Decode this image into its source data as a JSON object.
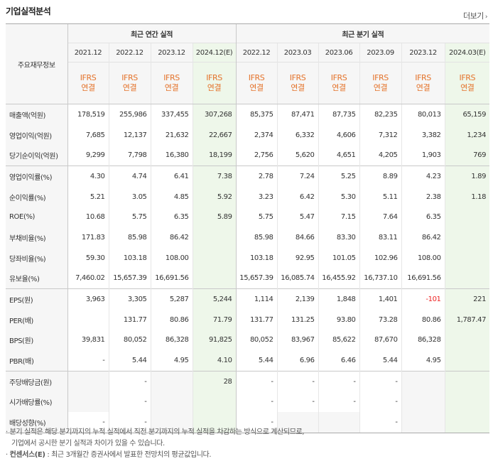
{
  "title": "기업실적분석",
  "more": "더보기",
  "header": {
    "row_label": "주요재무정보",
    "annual_label": "최근 연간 실적",
    "quarter_label": "최근 분기 실적",
    "annual_periods": [
      "2021.12",
      "2022.12",
      "2023.12",
      "2024.12(E)"
    ],
    "quarter_periods": [
      "2022.12",
      "2023.03",
      "2023.06",
      "2023.09",
      "2023.12",
      "2024.03(E)"
    ],
    "basis_line1": "IFRS",
    "basis_line2": "연결"
  },
  "rows": [
    {
      "label": "매출액(억원)",
      "annual": [
        "178,519",
        "255,986",
        "337,455",
        "307,268"
      ],
      "quarter": [
        "85,375",
        "87,471",
        "87,735",
        "82,235",
        "80,013",
        "65,159"
      ]
    },
    {
      "label": "영업이익(억원)",
      "annual": [
        "7,685",
        "12,137",
        "21,632",
        "22,667"
      ],
      "quarter": [
        "2,374",
        "6,332",
        "4,606",
        "7,312",
        "3,382",
        "1,234"
      ]
    },
    {
      "label": "당기순이익(억원)",
      "annual": [
        "9,299",
        "7,798",
        "16,380",
        "18,199"
      ],
      "quarter": [
        "2,756",
        "5,620",
        "4,651",
        "4,205",
        "1,903",
        "769"
      ]
    },
    {
      "label": "영업이익률(%)",
      "annual": [
        "4.30",
        "4.74",
        "6.41",
        "7.38"
      ],
      "quarter": [
        "2.78",
        "7.24",
        "5.25",
        "8.89",
        "4.23",
        "1.89"
      ]
    },
    {
      "label": "순이익률(%)",
      "annual": [
        "5.21",
        "3.05",
        "4.85",
        "5.92"
      ],
      "quarter": [
        "3.23",
        "6.42",
        "5.30",
        "5.11",
        "2.38",
        "1.18"
      ]
    },
    {
      "label": "ROE(%)",
      "annual": [
        "10.68",
        "5.75",
        "6.35",
        "5.89"
      ],
      "quarter": [
        "5.75",
        "5.47",
        "7.15",
        "7.64",
        "6.35",
        ""
      ]
    },
    {
      "label": "부채비율(%)",
      "annual": [
        "171.83",
        "85.98",
        "86.42",
        ""
      ],
      "quarter": [
        "85.98",
        "84.66",
        "83.30",
        "83.11",
        "86.42",
        ""
      ]
    },
    {
      "label": "당좌비율(%)",
      "annual": [
        "59.30",
        "103.18",
        "108.00",
        ""
      ],
      "quarter": [
        "103.18",
        "92.95",
        "101.05",
        "102.96",
        "108.00",
        ""
      ]
    },
    {
      "label": "유보율(%)",
      "annual": [
        "7,460.02",
        "15,657.39",
        "16,691.56",
        ""
      ],
      "quarter": [
        "15,657.39",
        "16,085.74",
        "16,455.92",
        "16,737.10",
        "16,691.56",
        ""
      ]
    },
    {
      "label": "EPS(원)",
      "annual": [
        "3,963",
        "3,305",
        "5,287",
        "5,244"
      ],
      "quarter": [
        "1,114",
        "2,139",
        "1,848",
        "1,401",
        "-101",
        "221"
      ]
    },
    {
      "label": "PER(배)",
      "annual": [
        "",
        "131.77",
        "80.86",
        "71.79"
      ],
      "quarter": [
        "131.77",
        "131.25",
        "93.80",
        "73.28",
        "80.86",
        "1,787.47"
      ]
    },
    {
      "label": "BPS(원)",
      "annual": [
        "39,831",
        "80,052",
        "86,328",
        "91,825"
      ],
      "quarter": [
        "80,052",
        "83,967",
        "85,622",
        "87,670",
        "86,328",
        ""
      ]
    },
    {
      "label": "PBR(배)",
      "annual": [
        "-",
        "5.44",
        "4.95",
        "4.10"
      ],
      "quarter": [
        "5.44",
        "6.96",
        "6.46",
        "5.44",
        "4.95",
        ""
      ]
    },
    {
      "label": "주당배당금(원)",
      "annual": [
        "",
        "-",
        "",
        "28"
      ],
      "quarter": [
        "-",
        "-",
        "-",
        "-",
        "",
        ""
      ]
    },
    {
      "label": "시가배당률(%)",
      "annual": [
        "",
        "-",
        "",
        ""
      ],
      "quarter": [
        "-",
        "-",
        "-",
        "-",
        "",
        ""
      ]
    },
    {
      "label": "배당성향(%)",
      "annual": [
        "-",
        "-",
        "",
        ""
      ],
      "quarter": [
        "-",
        "",
        "",
        "-",
        "",
        ""
      ]
    }
  ],
  "notes": {
    "line1": "분기 실적은 해당 분기까지의 누적 실적에서 직전 분기까지의 누적 실적을 차감하는 방식으로 계산되므로,",
    "line2": "기업에서 공시한 분기 실적과 차이가 있을 수 있습니다.",
    "consensus_label": "컨센서스(E)",
    "line3": ": 최근 3개월간 증권사에서 발표한 전망치의 평균값입니다."
  },
  "colors": {
    "accent_orange": "#e4722a",
    "estimate_bg": "#eef7ea",
    "negative": "#e22222",
    "header_bg": "#f6f6f6"
  }
}
